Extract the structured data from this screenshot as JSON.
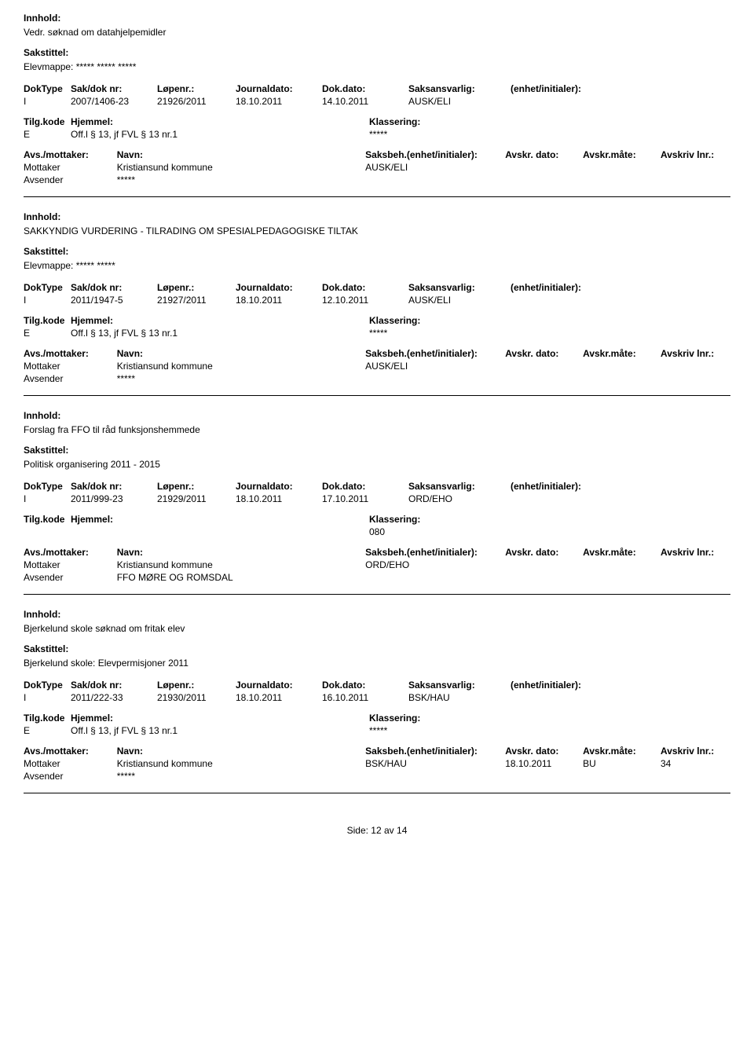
{
  "labels": {
    "innhold": "Innhold:",
    "sakstittel": "Sakstittel:",
    "doktype": "DokType",
    "sakdoknr": "Sak/dok nr:",
    "lopenr": "Løpenr.:",
    "journaldato": "Journaldato:",
    "dokdato": "Dok.dato:",
    "saksansvarlig": "Saksansvarlig:",
    "enhet": "(enhet/initialer):",
    "tilgkode": "Tilg.kode",
    "hjemmel": "Hjemmel:",
    "klassering": "Klassering:",
    "avsmottaker": "Avs./mottaker:",
    "navn": "Navn:",
    "saksbeh": "Saksbeh.(enhet/initialer):",
    "avskrdato": "Avskr. dato:",
    "avskrmate": "Avskr.måte:",
    "avskrivlnr": "Avskriv lnr.:",
    "mottaker": "Mottaker",
    "avsender": "Avsender",
    "side": "Side:",
    "pageof": "av"
  },
  "footer": {
    "page": "12",
    "total": "14"
  },
  "records": [
    {
      "innhold": "Vedr. søknad om datahjelpemidler",
      "sakstittel": "Elevmappe: ***** ***** *****",
      "doktype": "I",
      "sakdoknr": "2007/1406-23",
      "lopenr": "21926/2011",
      "journaldato": "18.10.2011",
      "dokdato": "14.10.2011",
      "saksansvarlig": "AUSK/ELI",
      "enhet": "",
      "tilgkode": "E",
      "hjemmel": "Off.l § 13, jf FVL § 13 nr.1",
      "klassering": "*****",
      "mottaker_navn": "Kristiansund kommune",
      "saksbeh": "AUSK/ELI",
      "avskr_dato": "",
      "avskr_mate": "",
      "avskriv_lnr": "",
      "avsender_navn": "*****"
    },
    {
      "innhold": "SAKKYNDIG VURDERING - TILRADING OM SPESIALPEDAGOGISKE TILTAK",
      "sakstittel": "Elevmappe: ***** *****",
      "doktype": "I",
      "sakdoknr": "2011/1947-5",
      "lopenr": "21927/2011",
      "journaldato": "18.10.2011",
      "dokdato": "12.10.2011",
      "saksansvarlig": "AUSK/ELI",
      "enhet": "",
      "tilgkode": "E",
      "hjemmel": "Off.l § 13, jf FVL § 13 nr.1",
      "klassering": "*****",
      "mottaker_navn": "Kristiansund kommune",
      "saksbeh": "AUSK/ELI",
      "avskr_dato": "",
      "avskr_mate": "",
      "avskriv_lnr": "",
      "avsender_navn": "*****"
    },
    {
      "innhold": "Forslag fra FFO til råd funksjonshemmede",
      "sakstittel": "Politisk organisering 2011 - 2015",
      "doktype": "I",
      "sakdoknr": "2011/999-23",
      "lopenr": "21929/2011",
      "journaldato": "18.10.2011",
      "dokdato": "17.10.2011",
      "saksansvarlig": "ORD/EHO",
      "enhet": "",
      "tilgkode": "",
      "hjemmel": "",
      "klassering": "080",
      "mottaker_navn": "Kristiansund kommune",
      "saksbeh": "ORD/EHO",
      "avskr_dato": "",
      "avskr_mate": "",
      "avskriv_lnr": "",
      "avsender_navn": "FFO MØRE OG ROMSDAL"
    },
    {
      "innhold": "Bjerkelund skole søknad om fritak elev",
      "sakstittel": "Bjerkelund skole: Elevpermisjoner 2011",
      "doktype": "I",
      "sakdoknr": "2011/222-33",
      "lopenr": "21930/2011",
      "journaldato": "18.10.2011",
      "dokdato": "16.10.2011",
      "saksansvarlig": "BSK/HAU",
      "enhet": "",
      "tilgkode": "E",
      "hjemmel": "Off.l § 13, jf FVL § 13 nr.1",
      "klassering": "*****",
      "mottaker_navn": "Kristiansund kommune",
      "saksbeh": "BSK/HAU",
      "avskr_dato": "18.10.2011",
      "avskr_mate": "BU",
      "avskriv_lnr": "34",
      "avsender_navn": "*****"
    }
  ]
}
